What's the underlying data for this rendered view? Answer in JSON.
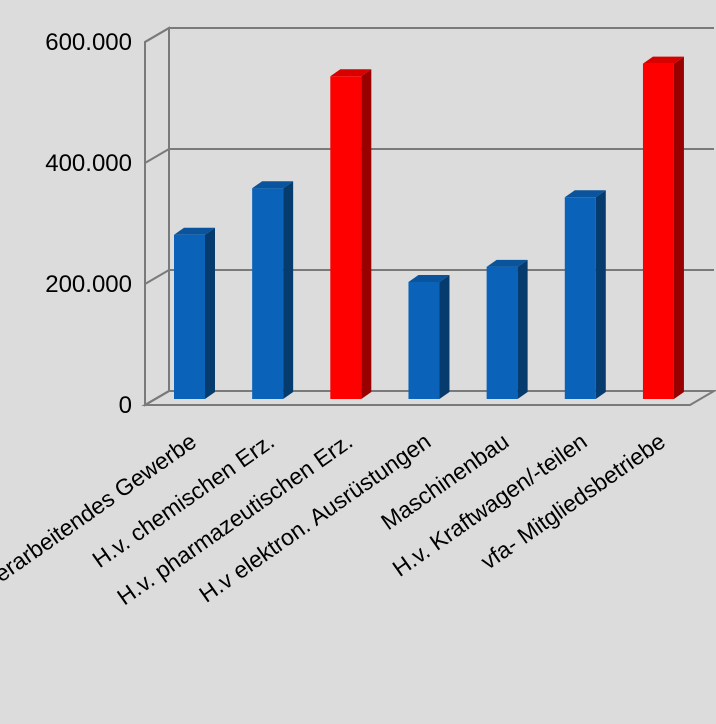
{
  "chart_data": {
    "type": "bar",
    "title": "",
    "xlabel": "",
    "ylabel": "",
    "ylim": [
      0,
      600000
    ],
    "y_ticks": [
      0,
      200000,
      400000,
      600000
    ],
    "y_tick_labels": [
      "0",
      "200.000",
      "400.000",
      "600.000"
    ],
    "grid": true,
    "style": "3d-columns",
    "categories": [
      "Verarbeitendes Gewerbe",
      "H.v. chemischen Erz.",
      "H.v. pharmazeutischen Erz.",
      "H.v elektron. Ausrüstungen",
      "Maschinenbau",
      "H.v. Kraftwagen/-teilen",
      "vfa- Mitgliedsbetriebe"
    ],
    "values": [
      283000,
      360000,
      545000,
      205000,
      230000,
      345000,
      566000
    ],
    "bar_colors": [
      "#0a63b8",
      "#0a63b8",
      "#ff0000",
      "#0a63b8",
      "#0a63b8",
      "#0a63b8",
      "#ff0000"
    ],
    "colors": {
      "blue": "#0a63b8",
      "red": "#ff0000",
      "grid": "#7a7a7a",
      "background": "#dcdcdc"
    }
  }
}
